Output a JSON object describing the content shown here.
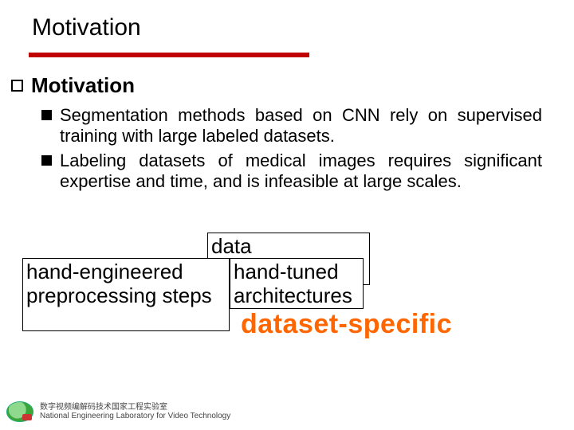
{
  "colors": {
    "rule": "#c00000",
    "text": "#000000",
    "highlight": "#ff6600",
    "background": "#ffffff"
  },
  "typography": {
    "title_fontsize": 30,
    "subheader_fontsize": 26,
    "bullet_fontsize": 22,
    "box_fontsize": 26,
    "highlight_fontsize": 34,
    "footer_fontsize": 10
  },
  "title": "Motivation",
  "subheader": "Motivation",
  "bullets": [
    "Segmentation methods based on CNN rely on supervised training with large labeled datasets.",
    "Labeling datasets of medical images requires significant expertise and time, and is infeasible at large scales."
  ],
  "boxes": {
    "box1": "hand-engineered preprocessing steps",
    "box2": "data augmentation",
    "box3": "hand-tuned architectures"
  },
  "highlight": "dataset-specific",
  "footer": {
    "line1": "数字视频编解码技术国家工程实验室",
    "line2": "National Engineering Laboratory for Video Technology"
  }
}
